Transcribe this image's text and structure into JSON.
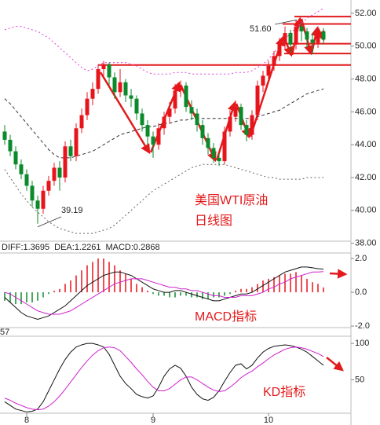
{
  "chart_data": [
    {
      "type": "candlestick",
      "up_color": "#e8141c",
      "down_color": "#0a8a2a",
      "open": [
        44.8,
        44.3,
        43.6,
        42.8,
        42.2,
        41.5,
        40.6,
        40.1,
        41.2,
        41.8,
        42.6,
        42.0,
        43.9,
        43.3,
        45.0,
        45.8,
        46.8,
        47.4,
        48.6,
        48.9,
        48.1,
        47.2,
        47.8,
        47.0,
        46.8,
        45.9,
        45.2,
        44.5,
        44.0,
        45.0,
        45.7,
        46.2,
        47.3,
        47.6,
        46.3,
        45.9,
        45.2,
        44.4,
        43.8,
        43.2,
        43.0,
        44.8,
        45.7,
        46.3,
        45.2,
        44.6,
        45.8,
        47.6,
        48.2,
        48.8,
        49.4,
        50.2,
        50.8,
        50.1,
        51.2,
        50.9,
        50.4,
        50.2,
        50.9
      ],
      "high": [
        45.2,
        44.6,
        43.9,
        43.1,
        42.5,
        41.8,
        40.9,
        41.5,
        42.1,
        42.9,
        43.0,
        44.2,
        44.3,
        45.3,
        46.2,
        47.2,
        47.8,
        48.9,
        49.1,
        49.0,
        48.4,
        48.6,
        48.0,
        47.4,
        47.0,
        46.2,
        45.5,
        44.8,
        45.3,
        46.0,
        46.6,
        47.7,
        47.9,
        47.8,
        46.7,
        46.2,
        45.5,
        44.7,
        44.1,
        43.5,
        45.1,
        46.1,
        46.7,
        46.5,
        45.5,
        46.1,
        47.9,
        48.5,
        49.1,
        49.7,
        50.5,
        51.2,
        51.0,
        51.6,
        51.4,
        51.1,
        50.8,
        51.2,
        51.1
      ],
      "low": [
        44.0,
        43.3,
        42.5,
        41.9,
        41.2,
        40.2,
        39.19,
        39.8,
        40.9,
        41.5,
        41.2,
        41.7,
        43.0,
        43.0,
        44.7,
        45.5,
        46.4,
        47.1,
        48.2,
        47.6,
        46.8,
        46.9,
        46.6,
        46.3,
        45.5,
        44.8,
        44.0,
        43.2,
        43.7,
        44.6,
        45.3,
        45.9,
        46.9,
        46.0,
        45.5,
        44.8,
        44.0,
        43.4,
        42.9,
        42.7,
        42.8,
        44.5,
        45.4,
        44.9,
        44.2,
        44.3,
        45.5,
        47.2,
        47.9,
        48.5,
        49.1,
        49.8,
        49.6,
        49.8,
        50.3,
        49.9,
        49.5,
        49.9,
        50.1
      ],
      "close": [
        44.3,
        43.6,
        42.8,
        42.2,
        41.5,
        40.6,
        40.1,
        41.2,
        41.8,
        42.6,
        42.0,
        43.9,
        43.3,
        45.0,
        45.8,
        46.8,
        47.4,
        48.6,
        48.9,
        48.1,
        47.2,
        47.8,
        47.0,
        46.8,
        45.9,
        45.2,
        44.5,
        44.0,
        45.0,
        45.7,
        46.2,
        47.3,
        47.6,
        46.3,
        45.9,
        45.2,
        44.4,
        43.8,
        43.2,
        43.0,
        44.8,
        45.7,
        46.3,
        45.2,
        44.6,
        45.8,
        47.6,
        48.2,
        48.8,
        49.4,
        50.2,
        50.8,
        50.1,
        51.2,
        50.9,
        50.4,
        50.2,
        50.9,
        50.4
      ],
      "bands": [
        {
          "color": "#e040e0",
          "dash": "2,3",
          "values": [
            51.0,
            51.1,
            51.2,
            51.2,
            51.1,
            51.0,
            50.9,
            50.7,
            50.5,
            50.2,
            49.9,
            49.6,
            49.3,
            49.0,
            48.7,
            48.5,
            48.6,
            48.8,
            49.0,
            49.0,
            49.0,
            49.0,
            49.0,
            48.9,
            48.8,
            48.6,
            48.4,
            48.3,
            48.3,
            48.3,
            48.3,
            48.4,
            48.4,
            48.4,
            48.3,
            48.3,
            48.3,
            48.3,
            48.3,
            48.3,
            48.3,
            48.3,
            48.4,
            48.4,
            48.4,
            48.5,
            48.7,
            48.9,
            49.2,
            49.6,
            50.0,
            50.4,
            50.8,
            51.1,
            51.4,
            51.7,
            51.9,
            52.1,
            52.3
          ]
        },
        {
          "color": "#333333",
          "dash": "4,3",
          "values": [
            46.8,
            46.5,
            46.1,
            45.7,
            45.3,
            44.9,
            44.5,
            44.1,
            43.7,
            43.4,
            43.2,
            43.2,
            43.2,
            43.3,
            43.4,
            43.5,
            43.6,
            43.8,
            44.0,
            44.2,
            44.4,
            44.6,
            44.7,
            44.8,
            44.9,
            45.0,
            45.1,
            45.1,
            45.2,
            45.3,
            45.3,
            45.4,
            45.5,
            45.5,
            45.6,
            45.6,
            45.6,
            45.6,
            45.6,
            45.6,
            45.6,
            45.6,
            45.6,
            45.6,
            45.6,
            45.6,
            45.7,
            45.8,
            45.9,
            46.0,
            46.1,
            46.3,
            46.5,
            46.7,
            46.9,
            47.1,
            47.2,
            47.3,
            47.4
          ]
        },
        {
          "color": "#666666",
          "dash": "2,3",
          "values": [
            42.5,
            42.0,
            41.5,
            41.0,
            40.6,
            40.2,
            39.9,
            39.6,
            39.3,
            39.1,
            38.9,
            38.8,
            38.7,
            38.6,
            38.6,
            38.6,
            38.6,
            38.7,
            38.8,
            38.9,
            39.1,
            39.4,
            39.7,
            40.0,
            40.3,
            40.6,
            40.9,
            41.2,
            41.4,
            41.6,
            41.8,
            42.0,
            42.2,
            42.4,
            42.6,
            42.7,
            42.8,
            42.8,
            42.8,
            42.8,
            42.8,
            42.7,
            42.6,
            42.5,
            42.4,
            42.3,
            42.2,
            42.1,
            42.0,
            42.0,
            41.9,
            41.9,
            41.9,
            41.9,
            41.9,
            42.0,
            42.0,
            42.0,
            42.0
          ]
        }
      ],
      "levels": [
        48.85,
        51.8,
        51.35,
        50.15,
        49.55
      ],
      "level_color": "#e31a1c",
      "annotations": [
        {
          "value": 51.6,
          "label": "51.60"
        },
        {
          "value": 39.19,
          "label": "39.19"
        }
      ],
      "notes": [
        "美国WTI原油",
        "日线图"
      ],
      "ylim": [
        37.6,
        52.81
      ],
      "yticks": [
        {
          "value": 38,
          "label": "38.00"
        },
        {
          "value": 40,
          "label": "40.00"
        },
        {
          "value": 42,
          "label": "42.00"
        },
        {
          "value": 44,
          "label": "44.00"
        },
        {
          "value": 46,
          "label": "46.00"
        },
        {
          "value": 48,
          "label": "48.00"
        },
        {
          "value": 50,
          "label": "50.00"
        },
        {
          "value": 52,
          "label": "52.00"
        }
      ],
      "grid": false
    },
    {
      "type": "macd",
      "header": [
        "DIFF:1.3695",
        "DEA:1.2261",
        "MACD:0.2868"
      ],
      "header_colors": [
        "#333366",
        "#d020d0",
        "#666666"
      ],
      "note": "MACD指标",
      "hist": {
        "up_color": "#e8141c",
        "down_color": "#0a8a2a",
        "values": [
          -0.5,
          -0.6,
          -0.7,
          -0.7,
          -0.6,
          -0.6,
          -0.5,
          -0.3,
          -0.1,
          0.1,
          0.2,
          0.5,
          0.7,
          1.0,
          1.3,
          1.6,
          1.8,
          2.0,
          2.0,
          1.8,
          1.6,
          1.3,
          1.1,
          0.8,
          0.5,
          0.3,
          0.1,
          -0.1,
          -0.2,
          -0.2,
          -0.3,
          -0.3,
          -0.2,
          -0.2,
          -0.3,
          -0.3,
          -0.4,
          -0.4,
          -0.3,
          -0.3,
          -0.2,
          -0.1,
          0.1,
          0.2,
          0.2,
          0.3,
          0.5,
          0.7,
          0.8,
          0.9,
          1.0,
          1.1,
          1.1,
          1.2,
          1.0,
          0.8,
          0.6,
          0.5,
          0.2868
        ]
      },
      "series": [
        {
          "color": "#111111",
          "values": [
            -0.3,
            -0.6,
            -0.9,
            -1.2,
            -1.4,
            -1.5,
            -1.6,
            -1.5,
            -1.4,
            -1.2,
            -1.0,
            -0.8,
            -0.5,
            -0.2,
            0.1,
            0.4,
            0.6,
            0.8,
            1.0,
            1.1,
            1.2,
            1.2,
            1.1,
            1.0,
            0.8,
            0.6,
            0.4,
            0.2,
            0.1,
            0.0,
            0.0,
            0.1,
            0.1,
            0.0,
            -0.1,
            -0.2,
            -0.3,
            -0.4,
            -0.5,
            -0.5,
            -0.4,
            -0.3,
            -0.2,
            -0.1,
            -0.1,
            0.0,
            0.2,
            0.4,
            0.6,
            0.8,
            1.0,
            1.2,
            1.3,
            1.4,
            1.5,
            1.5,
            1.45,
            1.4,
            1.3695
          ]
        },
        {
          "color": "#d020d0",
          "values": [
            0.0,
            -0.1,
            -0.3,
            -0.5,
            -0.7,
            -0.9,
            -1.1,
            -1.2,
            -1.3,
            -1.3,
            -1.3,
            -1.2,
            -1.1,
            -0.9,
            -0.7,
            -0.5,
            -0.3,
            -0.1,
            0.1,
            0.3,
            0.5,
            0.6,
            0.7,
            0.8,
            0.8,
            0.8,
            0.7,
            0.6,
            0.5,
            0.4,
            0.3,
            0.3,
            0.2,
            0.2,
            0.1,
            0.1,
            0.0,
            -0.1,
            -0.2,
            -0.2,
            -0.3,
            -0.3,
            -0.3,
            -0.2,
            -0.2,
            -0.2,
            -0.1,
            0.0,
            0.2,
            0.3,
            0.5,
            0.6,
            0.8,
            0.9,
            1.0,
            1.1,
            1.2,
            1.2,
            1.2261
          ]
        }
      ],
      "ylim": [
        -2.09,
        2.33
      ],
      "yticks": [
        {
          "value": 2,
          "label": "2.0"
        },
        {
          "value": 0,
          "label": "0.0"
        },
        {
          "value": -2,
          "label": "-2.0"
        }
      ]
    },
    {
      "type": "line",
      "header": "57",
      "note": "KD指标",
      "categories": [
        null,
        null,
        null,
        null,
        "8",
        null,
        null,
        null,
        null,
        null,
        null,
        null,
        null,
        null,
        null,
        null,
        null,
        null,
        null,
        null,
        null,
        null,
        null,
        null,
        null,
        null,
        null,
        "9",
        null,
        null,
        null,
        null,
        null,
        null,
        null,
        null,
        null,
        null,
        null,
        null,
        null,
        null,
        null,
        null,
        null,
        null,
        null,
        null,
        "10",
        null,
        null,
        null,
        null,
        null,
        null,
        null,
        null,
        null,
        null
      ],
      "series": [
        {
          "color": "#111111",
          "values": [
            20,
            15,
            10,
            8,
            6,
            7,
            10,
            20,
            35,
            50,
            65,
            78,
            88,
            95,
            98,
            100,
            100,
            98,
            95,
            85,
            70,
            55,
            45,
            38,
            30,
            27,
            25,
            28,
            40,
            55,
            65,
            70,
            66,
            55,
            40,
            30,
            24,
            22,
            26,
            35,
            48,
            60,
            70,
            72,
            65,
            70,
            80,
            88,
            93,
            96,
            97,
            98,
            97,
            95,
            92,
            88,
            82,
            76,
            70
          ]
        },
        {
          "color": "#d020d0",
          "values": [
            25,
            22,
            18,
            15,
            12,
            10,
            9,
            10,
            14,
            20,
            28,
            37,
            47,
            57,
            67,
            76,
            84,
            90,
            94,
            95,
            94,
            90,
            82,
            74,
            65,
            57,
            48,
            40,
            35,
            35,
            38,
            44,
            50,
            54,
            54,
            50,
            45,
            40,
            36,
            34,
            35,
            40,
            46,
            53,
            58,
            62,
            68,
            73,
            79,
            84,
            88,
            92,
            94,
            95,
            94,
            92,
            89,
            86,
            82
          ]
        }
      ],
      "ylim": [
        4.3,
        109.8
      ],
      "yticks": [
        100,
        50
      ]
    }
  ]
}
